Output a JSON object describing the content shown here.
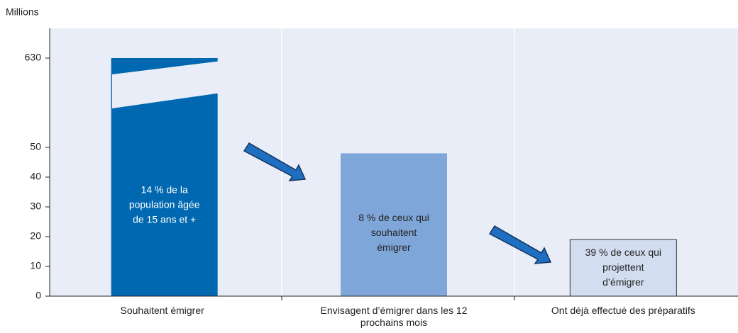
{
  "chart_data": {
    "type": "bar",
    "y_label": "Millions",
    "categories": [
      "Souhaitent émigrer",
      "Envisagent d’émigrer dans les 12 prochains mois",
      "Ont déjà effectué des préparatifs"
    ],
    "values": [
      630,
      48,
      19
    ],
    "colors": [
      "#0068b0",
      "#7fa6d8",
      "#d2ddf0"
    ],
    "bar_labels": [
      [
        "14 % de la",
        "population âgée",
        "de 15 ans et +"
      ],
      [
        "8 % de ceux qui",
        "souhaitent",
        "émigrer"
      ],
      [
        "39 % de ceux qui",
        "projettent",
        "d’émigrer"
      ]
    ],
    "ylim": [
      0,
      630
    ],
    "yticks": [
      0,
      10,
      20,
      30,
      40,
      50,
      630
    ],
    "axis_break": true
  }
}
